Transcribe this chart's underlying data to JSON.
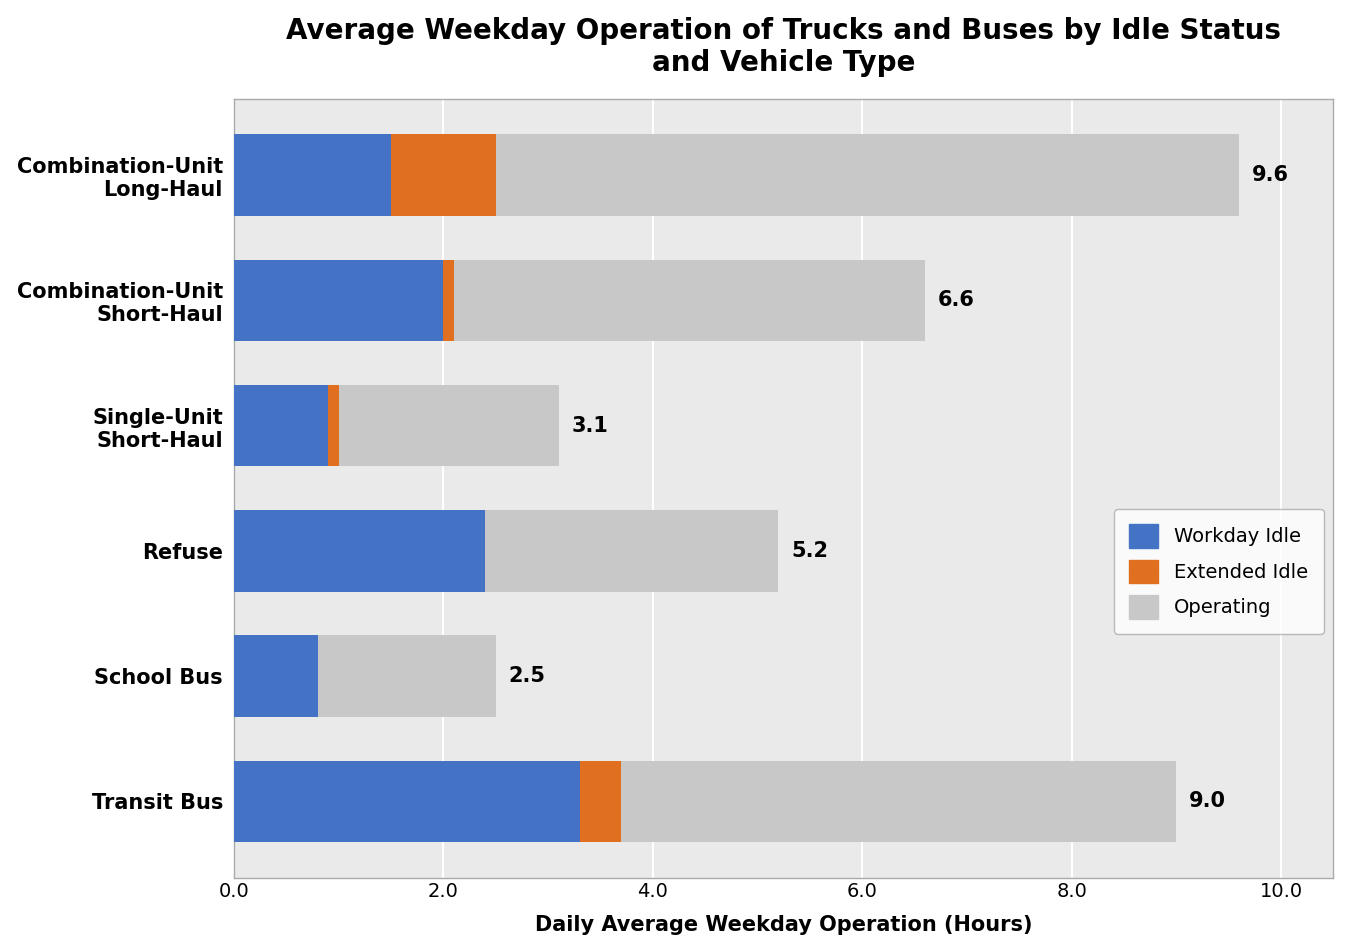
{
  "title": "Average Weekday Operation of Trucks and Buses by Idle Status\nand Vehicle Type",
  "categories": [
    "Combination-Unit\nLong-Haul",
    "Combination-Unit\nShort-Haul",
    "Single-Unit\nShort-Haul",
    "Refuse",
    "School Bus",
    "Transit Bus"
  ],
  "workday_idle": [
    1.5,
    2.0,
    0.9,
    2.4,
    0.8,
    3.3
  ],
  "extended_idle": [
    1.0,
    0.1,
    0.1,
    0.0,
    0.0,
    0.4
  ],
  "operating": [
    7.1,
    4.5,
    2.1,
    2.8,
    1.7,
    5.3
  ],
  "totals": [
    9.6,
    6.6,
    3.1,
    5.2,
    2.5,
    9.0
  ],
  "colors": {
    "workday_idle": "#4472C4",
    "extended_idle": "#E07020",
    "operating": "#C8C8C8"
  },
  "legend_labels": [
    "Workday Idle",
    "Extended Idle",
    "Operating"
  ],
  "xlabel": "Daily Average Weekday Operation (Hours)",
  "xlim": [
    0,
    10.5
  ],
  "xticks": [
    0.0,
    2.0,
    4.0,
    6.0,
    8.0,
    10.0
  ],
  "xticklabels": [
    "0.0",
    "2.0",
    "4.0",
    "6.0",
    "8.0",
    "10.0"
  ],
  "background_color": "#ffffff",
  "plot_bg_color": "#EAEAEA",
  "grid_color": "#ffffff",
  "bar_height": 0.65,
  "title_fontsize": 20,
  "label_fontsize": 15,
  "tick_fontsize": 14,
  "legend_fontsize": 14,
  "total_fontsize": 15,
  "ylabel_pad": 20
}
